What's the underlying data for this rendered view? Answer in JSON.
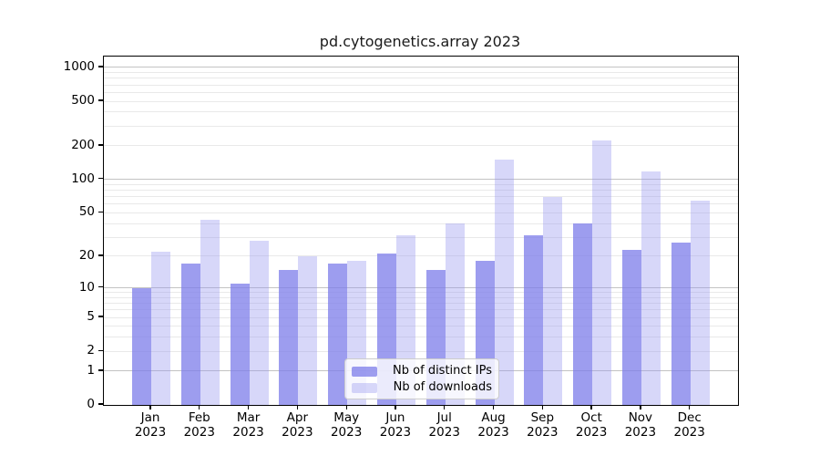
{
  "chart_data": {
    "type": "bar",
    "title": "pd.cytogenetics.array 2023",
    "categories": [
      "Jan",
      "Feb",
      "Mar",
      "Apr",
      "May",
      "Jun",
      "Jul",
      "Aug",
      "Sep",
      "Oct",
      "Nov",
      "Dec"
    ],
    "x_tick_year_line": "2023",
    "series": [
      {
        "name": "Nb of distinct IPs",
        "color": "rgba(124,124,233,0.75)",
        "values": [
          10,
          17,
          11,
          15,
          17,
          21,
          15,
          18,
          31,
          40,
          23,
          27
        ]
      },
      {
        "name": "Nb of downloads",
        "color": "rgba(151,151,240,0.38)",
        "values": [
          22,
          43,
          28,
          20,
          18,
          31,
          40,
          150,
          70,
          225,
          118,
          65
        ]
      }
    ],
    "yticks": [
      0,
      1,
      2,
      5,
      10,
      20,
      50,
      100,
      200,
      500,
      1000
    ],
    "y_scale": "log10(value+1)",
    "ylim": [
      0,
      1250
    ],
    "xlabel": "",
    "ylabel": "",
    "grid": true,
    "legend_position": "inside-bottom-center",
    "colors": {
      "major_grid": "#c3c3c3",
      "minor_grid": "#e9e9e9",
      "axis": "#000000",
      "background": "#ffffff",
      "text": "#000000"
    }
  }
}
